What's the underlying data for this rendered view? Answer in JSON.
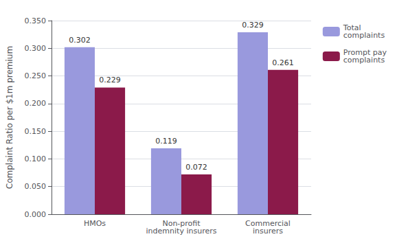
{
  "chart_data": {
    "type": "bar",
    "categories": [
      "HMOs",
      "Non-profit\nindemnity insurers",
      "Commercial\ninsurers"
    ],
    "series": [
      {
        "name": "Total\ncomplaints",
        "color": "#9999dd",
        "values": [
          0.302,
          0.119,
          0.329
        ]
      },
      {
        "name": "Prompt pay\ncomplaints",
        "color": "#8B1A4A",
        "values": [
          0.229,
          0.072,
          0.261
        ]
      }
    ],
    "ylabel": "Complaint Ratio per $1m premium",
    "ylim": [
      0,
      0.35
    ],
    "yticks": [
      {
        "value": 0,
        "label": "0.000"
      },
      {
        "value": 0.05,
        "label": "0.050"
      },
      {
        "value": 0.1,
        "label": "0.100"
      },
      {
        "value": 0.15,
        "label": "0.150"
      },
      {
        "value": 0.2,
        "label": "0.200"
      },
      {
        "value": 0.25,
        "label": "0.250"
      },
      {
        "value": 0.3,
        "label": "0.300"
      },
      {
        "value": 0.35,
        "label": "0.350"
      }
    ],
    "grid": true,
    "legend": "right",
    "data_labels": true
  }
}
